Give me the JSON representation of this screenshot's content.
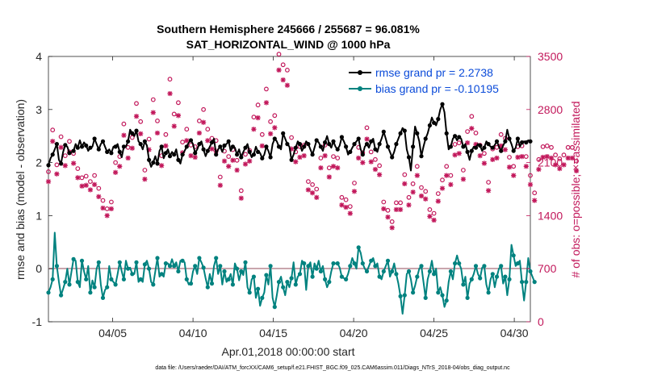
{
  "chart_data": {
    "type": "line",
    "title": "Southern Hemisphere 245666 / 255687 = 96.081%",
    "subtitle": "SAT_HORIZONTAL_WIND @ 1000 hPa",
    "xlabel": "Apr.01,2018 00:00:00 start",
    "ylabel_left": "rmse and bias (model - observation)",
    "ylabel_right": "# of obs: o=possible; ×=assimilated",
    "xlim": [
      1,
      31
    ],
    "ylim_left": [
      -1,
      4
    ],
    "ylim_right": [
      0,
      3500
    ],
    "x_ticks": [
      {
        "value": 5,
        "label": "04/05"
      },
      {
        "value": 10,
        "label": "04/10"
      },
      {
        "value": 15,
        "label": "04/15"
      },
      {
        "value": 20,
        "label": "04/20"
      },
      {
        "value": 25,
        "label": "04/25"
      },
      {
        "value": 30,
        "label": "04/30"
      }
    ],
    "y_ticks_left": [
      "-1",
      "0",
      "1",
      "2",
      "3",
      "4"
    ],
    "y_ticks_right": [
      "0",
      "700",
      "1400",
      "2100",
      "2800",
      "3500"
    ],
    "colors": {
      "rmse": "#000000",
      "bias": "#00827f",
      "obs": "#c2185b",
      "zero": "#c9a5ad",
      "legend_text": "#0b4bd9"
    },
    "legend": [
      {
        "name": "rmse",
        "label": "rmse grand pr = 2.2738"
      },
      {
        "name": "bias",
        "label": "bias grand pr = -0.10195"
      }
    ],
    "footer": "data file: /Users/raeder/DAI/ATM_forcXX/CAM6_setup/f.e21.FHIST_BGC.f09_025.CAM6assim.011/Diags_NTrS_2018-04/obs_diag_output.nc",
    "series": [
      {
        "name": "rmse",
        "values": [
          1.95,
          2.08,
          2.15,
          2.25,
          2.35,
          2.05,
          1.98,
          2.2,
          2.33,
          2.3,
          2.18,
          2.2,
          2.22,
          2.35,
          2.28,
          2.42,
          2.3,
          2.38,
          2.32,
          2.22,
          2.28,
          2.3,
          2.45,
          2.35,
          2.25,
          2.35,
          2.4,
          2.3,
          2.2,
          2.25,
          2.18,
          2.3,
          2.3,
          2.35,
          2.2,
          2.1,
          2.3,
          2.3,
          2.4,
          2.62,
          2.55,
          2.5,
          2.6,
          2.4,
          2.35,
          2.25,
          2.4,
          2.32,
          2.05,
          1.92,
          2.0,
          2.12,
          1.98,
          2.22,
          2.3,
          2.08,
          2.18,
          2.25,
          2.12,
          2.2,
          2.15,
          2.25,
          2.05,
          1.98,
          2.15,
          2.22,
          2.3,
          2.38,
          2.42,
          2.35,
          2.18,
          2.25,
          2.35,
          2.4,
          2.25,
          2.12,
          2.22,
          2.3,
          2.38,
          2.45,
          2.15,
          2.25,
          2.3,
          2.2,
          2.32,
          2.35,
          2.4,
          2.22,
          2.3,
          2.28,
          2.15,
          2.25,
          2.1,
          2.2,
          2.28,
          2.35,
          2.2,
          2.1,
          2.15,
          2.3,
          2.2,
          2.18,
          2.08,
          2.15,
          2.3,
          2.22,
          2.1,
          2.35,
          2.45,
          2.4,
          2.3,
          2.25,
          2.55,
          2.45,
          2.35,
          2.3,
          2.05,
          2.15,
          2.28,
          2.4,
          2.35,
          2.22,
          2.3,
          2.4,
          2.35,
          2.25,
          2.15,
          2.28,
          2.42,
          2.38,
          2.3,
          2.22,
          2.38,
          2.5,
          2.35,
          2.28,
          2.4,
          2.3,
          2.25,
          2.32,
          2.48,
          2.4,
          2.3,
          2.15,
          2.2,
          2.28,
          2.35,
          2.4,
          2.45,
          2.25,
          2.15,
          2.3,
          2.35,
          2.28,
          2.4,
          2.45,
          2.25,
          2.2,
          2.35,
          2.45,
          2.58,
          2.45,
          2.3,
          2.2,
          2.1,
          2.2,
          2.35,
          2.45,
          2.55,
          2.65,
          2.6,
          2.25,
          2.1,
          1.85,
          2.3,
          2.68,
          2.55,
          2.4,
          2.12,
          2.3,
          2.45,
          2.55,
          2.7,
          2.85,
          2.75,
          2.7,
          2.82,
          3.0,
          3.1,
          2.95,
          2.55,
          2.25,
          2.3,
          2.45,
          2.5,
          2.42,
          2.48,
          2.45,
          2.3,
          2.35,
          2.2,
          2.05,
          2.22,
          2.3,
          2.28,
          2.35,
          2.32,
          2.22,
          2.28,
          2.4,
          2.35,
          2.3,
          2.28,
          2.33,
          2.4,
          2.3,
          2.22,
          2.32,
          2.4,
          2.62,
          2.45,
          2.35,
          2.22,
          2.28,
          2.45,
          2.3,
          2.38,
          2.4,
          2.38,
          2.42,
          2.4
        ]
      },
      {
        "name": "bias",
        "values": [
          -0.45,
          -0.35,
          -0.2,
          0.68,
          0.05,
          -0.25,
          -0.5,
          -0.38,
          -0.25,
          0.0,
          -0.3,
          -0.05,
          0.18,
          0.15,
          -0.25,
          -0.35,
          0.15,
          -0.05,
          -0.2,
          0.05,
          -0.45,
          -0.22,
          -0.35,
          0.0,
          0.12,
          -0.3,
          -0.55,
          -0.4,
          -0.35,
          0.05,
          -0.2,
          -0.25,
          -0.3,
          -0.1,
          0.12,
          -0.05,
          -0.2,
          0.15,
          0.0,
          0.02,
          -0.1,
          -0.1,
          0.12,
          -0.25,
          -0.2,
          -0.25,
          0.08,
          0.15,
          0.0,
          -0.25,
          -0.3,
          -0.05,
          0.2,
          -0.15,
          -0.1,
          -0.15,
          0.1,
          0.1,
          0.05,
          0.18,
          0.05,
          0.12,
          -0.05,
          0.15,
          0.15,
          0.12,
          -0.2,
          -0.3,
          -0.28,
          -0.05,
          0.05,
          -0.1,
          0.2,
          0.12,
          0.02,
          -0.18,
          -0.35,
          -0.1,
          -0.28,
          0.05,
          0.2,
          -0.1,
          0.05,
          -0.3,
          -0.05,
          -0.25,
          -0.2,
          -0.1,
          -0.3,
          0.1,
          0.0,
          -0.22,
          -0.05,
          -0.12,
          0.12,
          -0.35,
          -0.45,
          -0.2,
          -0.15,
          -0.55,
          -0.38,
          -0.7,
          -0.55,
          -0.45,
          -0.12,
          -0.3,
          0.05,
          -0.55,
          -0.72,
          -0.5,
          -0.25,
          -0.15,
          -0.35,
          -0.5,
          -0.25,
          -0.35,
          -0.18,
          0.12,
          -0.3,
          -0.15,
          -0.1,
          0.15,
          0.1,
          -0.4,
          0.05,
          0.12,
          -0.15,
          0.1,
          0.0,
          0.15,
          -0.05,
          0.05,
          -0.2,
          -0.35,
          -0.25,
          -0.05,
          0.1,
          0.1,
          0.1,
          0.02,
          -0.15,
          -0.18,
          -0.2,
          -0.1,
          0.05,
          0.2,
          0.1,
          0.0,
          0.4,
          0.3,
          0.1,
          0.0,
          -0.05,
          0.05,
          0.15,
          0.2,
          0.05,
          0.1,
          -0.15,
          -0.2,
          -0.05,
          0.05,
          0.15,
          -0.15,
          -0.05,
          0.1,
          -0.1,
          -0.28,
          -0.52,
          -0.85,
          -0.5,
          -0.1,
          -0.05,
          -0.2,
          -0.45,
          -0.32,
          -0.15,
          0.0,
          0.05,
          -0.25,
          -0.55,
          -0.2,
          -0.05,
          0.15,
          -0.1,
          0.0,
          -0.45,
          -0.35,
          -0.5,
          -0.72,
          -0.6,
          -0.25,
          -0.05,
          -0.2,
          0.1,
          0.25,
          0.1,
          0.0,
          -0.3,
          -0.15,
          -0.55,
          -0.28,
          -0.2,
          -0.1,
          0.05,
          -0.1,
          -0.18,
          0.02,
          0.05,
          -0.3,
          -0.45,
          -0.2,
          -0.1,
          -0.35,
          -0.15,
          0.0,
          0.05,
          -0.28,
          -0.15,
          -0.5,
          -0.2,
          0.45,
          0.25,
          0.05,
          0.1,
          0.15,
          -0.25,
          -0.6,
          -0.25,
          0.2,
          -0.05,
          -0.15,
          -0.25
        ]
      },
      {
        "name": "possible",
        "values": [
          1980,
          2510,
          2530,
          2120,
          2070,
          2130,
          2440,
          2200,
          2190,
          2430,
          2380,
          2490,
          2220,
          1960,
          2020,
          1970,
          1900,
          1920,
          1920,
          1820,
          1850,
          1840,
          1930,
          1700,
          1760,
          1740,
          1600,
          1470,
          1490,
          1420,
          1580,
          1870,
          2100,
          2080,
          2180,
          2600,
          2610,
          2460,
          2300,
          2230,
          2430,
          2570,
          2880,
          3010,
          2640,
          2440,
          2000,
          2280,
          2410,
          3330,
          2930,
          2820,
          2650,
          2730,
          2190,
          2090,
          2470,
          2160,
          3200,
          2560,
          2740,
          2770,
          2890,
          2620,
          2370,
          2460,
          2540,
          2390,
          2330,
          2300,
          2310,
          3400,
          2650,
          2690,
          2800,
          3050,
          2540,
          2310,
          2420,
          2340,
          2390,
          2290,
          1910,
          2040,
          2250,
          2190,
          2180,
          2210,
          2270,
          2190,
          2130,
          1790,
          1730,
          1830,
          2210,
          2410,
          2260,
          2380,
          2700,
          2980,
          2860,
          2910,
          2470,
          2590,
          3070,
          2750,
          2640,
          2780,
          2720,
          3090,
          3530,
          3290,
          3390,
          2920,
          3320,
          2930,
          2430,
          2560,
          2240,
          2240,
          2310,
          2590,
          2330,
          2060,
          1850,
          1900,
          1810,
          1640,
          1750,
          1860,
          2160,
          2000,
          2330,
          2020,
          2030,
          2490,
          2180,
          2210,
          2160,
          1910,
          1640,
          1740,
          1610,
          1410,
          1520,
          1590,
          1830,
          2010,
          2300,
          2330,
          2230,
          2440,
          2560,
          2460,
          2240,
          2040,
          2140,
          2000,
          2060,
          1780,
          1580,
          1520,
          1470,
          1380,
          1320,
          1430,
          1570,
          1450,
          1570,
          1860,
          1940,
          1710,
          1640,
          1580,
          1820,
          1950,
          2050,
          1920,
          1770,
          1830,
          1720,
          1640,
          1480,
          1470,
          1430,
          1580,
          1690,
          1860,
          1870,
          2010,
          2050,
          1880,
          1930,
          2230,
          2340,
          2580,
          2360,
          2150,
          2000,
          2030,
          2510,
          2480,
          2710,
          2330,
          2490,
          2280,
          2330,
          2410,
          2220,
          2120,
          1840,
          1910,
          2280,
          2340,
          2300,
          2440,
          2470,
          2600,
          2420,
          2300,
          2170,
          2180,
          2050,
          2270,
          2310,
          2350,
          2320,
          2230,
          2180,
          2020,
          1930,
          1820,
          1700,
          1600,
          2140,
          2330,
          2310,
          2450,
          2320,
          2380,
          2300,
          2260,
          2200,
          2100,
          2150,
          2220,
          2200,
          2260,
          2300,
          2260,
          2300,
          2180,
          2120
        ]
      },
      {
        "name": "assimilated",
        "values": [
          1850,
          2360,
          2380,
          1990,
          1950,
          2000,
          2300,
          2070,
          2060,
          2280,
          2240,
          2350,
          2090,
          1840,
          1900,
          1850,
          1790,
          1800,
          1800,
          1710,
          1740,
          1730,
          1810,
          1600,
          1650,
          1640,
          1500,
          1380,
          1400,
          1330,
          1490,
          1760,
          1970,
          1950,
          2050,
          2450,
          2460,
          2310,
          2160,
          2100,
          2290,
          2420,
          2710,
          2830,
          2480,
          2300,
          1880,
          2140,
          2270,
          3130,
          2760,
          2650,
          2490,
          2570,
          2060,
          1970,
          2320,
          2030,
          3010,
          2410,
          2580,
          2610,
          2720,
          2460,
          2230,
          2310,
          2390,
          2250,
          2190,
          2160,
          2170,
          3190,
          2490,
          2530,
          2630,
          2870,
          2390,
          2170,
          2280,
          2200,
          2250,
          2150,
          1800,
          1920,
          2120,
          2060,
          2050,
          2080,
          2130,
          2060,
          2000,
          1680,
          1630,
          1720,
          2080,
          2270,
          2120,
          2240,
          2540,
          2800,
          2690,
          2740,
          2320,
          2440,
          2890,
          2590,
          2480,
          2610,
          2560,
          2900,
          3320,
          3090,
          3190,
          2740,
          3120,
          2750,
          2280,
          2410,
          2110,
          2110,
          2170,
          2430,
          2190,
          1940,
          1740,
          1790,
          1700,
          1540,
          1640,
          1750,
          2030,
          1880,
          2190,
          1900,
          1910,
          2340,
          2050,
          2080,
          2030,
          1800,
          1540,
          1640,
          1510,
          1330,
          1430,
          1490,
          1720,
          1890,
          2160,
          2190,
          2100,
          2290,
          2410,
          2310,
          2110,
          1920,
          2010,
          1880,
          1940,
          1670,
          1490,
          1430,
          1380,
          1300,
          1240,
          1340,
          1480,
          1360,
          1480,
          1750,
          1820,
          1610,
          1540,
          1490,
          1710,
          1830,
          1930,
          1800,
          1660,
          1720,
          1620,
          1540,
          1390,
          1380,
          1340,
          1490,
          1590,
          1750,
          1760,
          1890,
          1930,
          1770,
          1810,
          2100,
          2200,
          2430,
          2220,
          2020,
          1880,
          1910,
          2360,
          2330,
          2550,
          2190,
          2340,
          2140,
          2190,
          2270,
          2090,
          1990,
          1730,
          1800,
          2140,
          2200,
          2160,
          2290,
          2320,
          2440,
          2270,
          2160,
          2040,
          2050,
          1930,
          2130,
          2170,
          2210,
          2180,
          2100,
          2050,
          1900,
          1810,
          1710,
          1600,
          1500,
          2010,
          2190,
          2170,
          2300,
          2180,
          2240,
          2160,
          2120,
          2070,
          1970,
          2020,
          2090,
          2070,
          2120,
          2160,
          2120,
          2160,
          2050,
          1990
        ]
      }
    ]
  }
}
